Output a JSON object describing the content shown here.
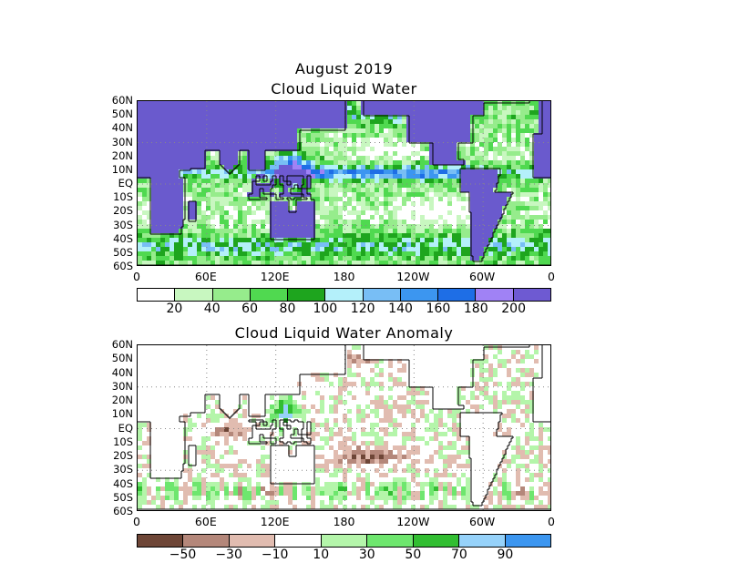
{
  "header": {
    "line1": "August 2019",
    "line2": "Cloud Liquid Water"
  },
  "panel2": {
    "title": "Cloud Liquid Water Anomaly"
  },
  "lat_labels": [
    "60N",
    "50N",
    "40N",
    "30N",
    "20N",
    "10N",
    "EQ",
    "10S",
    "20S",
    "30S",
    "40S",
    "50S",
    "60S"
  ],
  "lon_labels": [
    "0",
    "60E",
    "120E",
    "180",
    "120W",
    "60W",
    "0"
  ],
  "clw_colorbar": {
    "colors": [
      "#ffffff",
      "#c8f7c0",
      "#96ec8c",
      "#50d950",
      "#1ea51e",
      "#b4f0fa",
      "#78bef5",
      "#3c96f0",
      "#1e6ee6",
      "#a082f5",
      "#6e5ad2"
    ],
    "labels": [
      "20",
      "40",
      "60",
      "80",
      "100",
      "120",
      "140",
      "160",
      "180",
      "200"
    ]
  },
  "anom_colorbar": {
    "colors": [
      "#6e4637",
      "#b4877a",
      "#e1bcb0",
      "#ffffff",
      "#b4f5aa",
      "#6ee66e",
      "#32be32",
      "#96d2fa",
      "#3c96f0"
    ],
    "labels": [
      "−50",
      "−30",
      "−10",
      "10",
      "30",
      "50",
      "70",
      "90"
    ]
  },
  "land_color": "#6a5acd",
  "coast_color": "#000000"
}
